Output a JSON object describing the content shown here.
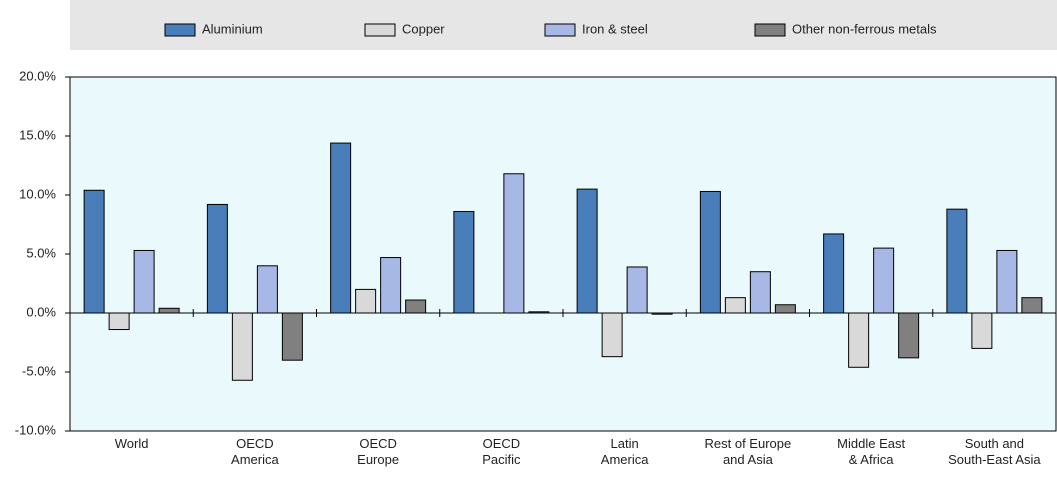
{
  "chart_data": {
    "type": "bar",
    "categories": [
      "World",
      "OECD\nAmerica",
      "OECD\nEurope",
      "OECD\nPacific",
      "Latin\nAmerica",
      "Rest of Europe\nand Asia",
      "Middle East\n& Africa",
      "South and\nSouth-East Asia"
    ],
    "series": [
      {
        "name": "Aluminium",
        "color": "#4a7ebb",
        "values": [
          10.4,
          9.2,
          14.4,
          8.6,
          10.5,
          10.3,
          6.7,
          8.8
        ]
      },
      {
        "name": "Copper",
        "color": "#d9d9d9",
        "values": [
          -1.4,
          -5.7,
          2.0,
          0,
          -3.7,
          1.3,
          -4.6,
          -3.0
        ]
      },
      {
        "name": "Iron & steel",
        "color": "#a7b7e6",
        "values": [
          5.3,
          4.0,
          4.7,
          11.8,
          3.9,
          3.5,
          5.5,
          5.3
        ]
      },
      {
        "name": "Other non-ferrous metals",
        "color": "#808080",
        "values": [
          0.4,
          -4.0,
          1.1,
          0.1,
          -0.1,
          0.7,
          -3.8,
          1.3
        ]
      }
    ],
    "ylim": [
      -10,
      20
    ],
    "yticks": [
      {
        "value": -10,
        "label": "-10.0%"
      },
      {
        "value": -5,
        "label": "-5.0%"
      },
      {
        "value": 0,
        "label": "0.0%"
      },
      {
        "value": 5,
        "label": "5.0%"
      },
      {
        "value": 10,
        "label": "10.0%"
      },
      {
        "value": 15,
        "label": "15.0%"
      },
      {
        "value": 20,
        "label": "20.0%"
      }
    ],
    "legend": "top"
  }
}
